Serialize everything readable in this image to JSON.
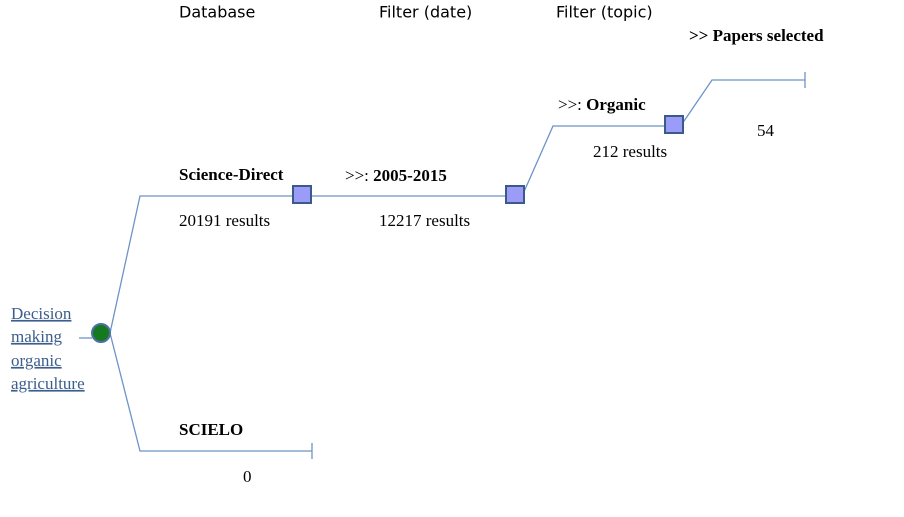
{
  "headers": {
    "database": "Database",
    "filter_date": "Filter (date)",
    "filter_topic": "Filter (topic)",
    "selected": ">> Papers selected"
  },
  "root": {
    "lines": [
      "Decision",
      "making",
      "organic",
      "agriculture"
    ]
  },
  "nodes": [
    {
      "label": "Science-Direct",
      "result": "20191 results"
    },
    {
      "prefix": ">>:",
      "label": "2005-2015",
      "result": "12217 results"
    },
    {
      "prefix": ">>:",
      "label": "Organic",
      "result": "212 results"
    },
    {
      "result": "54"
    },
    {
      "label": "SCIELO",
      "result": "0"
    }
  ]
}
